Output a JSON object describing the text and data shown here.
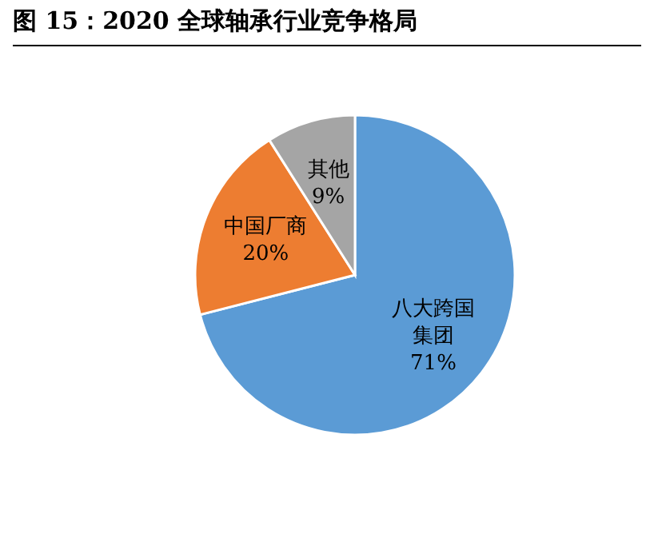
{
  "chart_data": {
    "type": "pie",
    "title": "图 15：2020 全球轴承行业竞争格局",
    "categories": [
      "八大跨国集团",
      "中国厂商",
      "其他"
    ],
    "values": [
      71,
      20,
      9
    ],
    "colors": [
      "#5b9bd5",
      "#ed7d31",
      "#a5a5a5"
    ],
    "value_labels": [
      "71%",
      "20%",
      "9%"
    ],
    "legend": false
  }
}
